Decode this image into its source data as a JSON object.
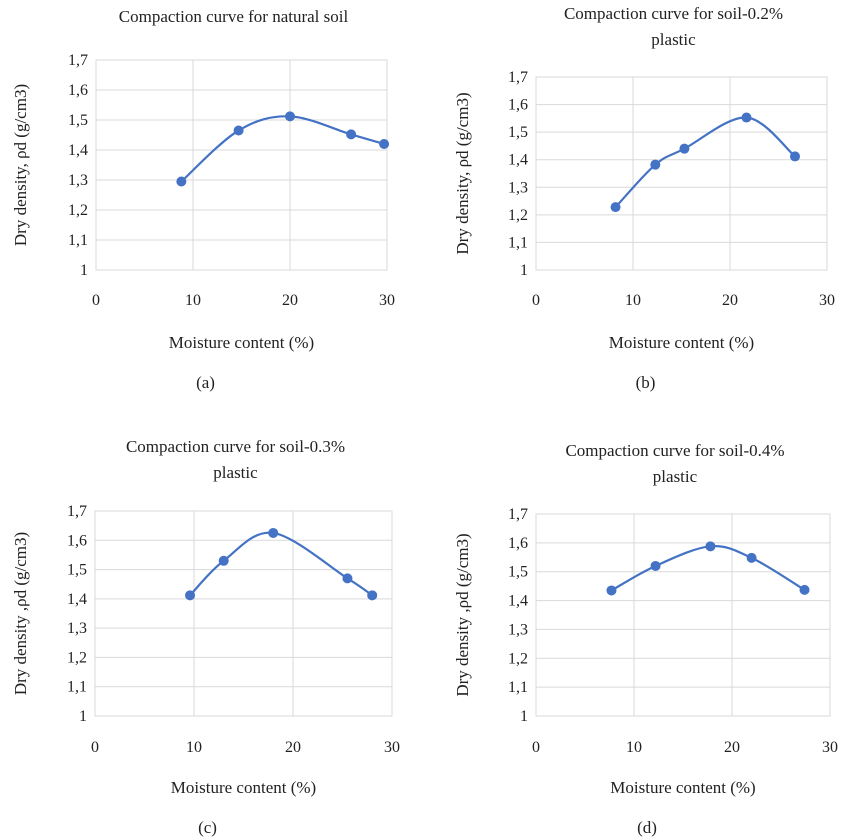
{
  "colors": {
    "series": "#4472C4"
  },
  "chart_data": [
    {
      "type": "line",
      "smooth": true,
      "title_lines": [
        "Compaction curve for natural soil"
      ],
      "xlabel": "Moisture content (%)",
      "ylabel": "Dry density, ρd (g/cm3)",
      "caption": "(a)",
      "xlim": [
        0,
        30
      ],
      "ylim": [
        1,
        1.7
      ],
      "xticks": [
        "0",
        "10",
        "20",
        "30"
      ],
      "yticks": [
        "1",
        "1,1",
        "1,2",
        "1,3",
        "1,4",
        "1,5",
        "1,6",
        "1,7"
      ],
      "grid": true,
      "x": [
        8.8,
        14.7,
        20.0,
        26.3,
        29.7
      ],
      "y": [
        1.295,
        1.465,
        1.512,
        1.452,
        1.42
      ]
    },
    {
      "type": "line",
      "smooth": true,
      "title_lines": [
        "Compaction curve for soil-0.2%",
        "plastic"
      ],
      "xlabel": "Moisture content (%)",
      "ylabel": "Dry density, ρd (g/cm3)",
      "caption": "(b)",
      "xlim": [
        0,
        30
      ],
      "ylim": [
        1,
        1.7
      ],
      "xticks": [
        "0",
        "10",
        "20",
        "30"
      ],
      "yticks": [
        "1",
        "1,1",
        "1,2",
        "1,3",
        "1,4",
        "1,5",
        "1,6",
        "1,7"
      ],
      "grid": true,
      "x": [
        8.2,
        12.3,
        15.3,
        21.7,
        26.7
      ],
      "y": [
        1.228,
        1.382,
        1.44,
        1.553,
        1.412
      ]
    },
    {
      "type": "line",
      "smooth": true,
      "title_lines": [
        "Compaction curve for soil-0.3%",
        "plastic"
      ],
      "xlabel": "Moisture content (%)",
      "ylabel": "Dry density ,ρd (g/cm3)",
      "caption": "(c)",
      "xlim": [
        0,
        30
      ],
      "ylim": [
        1,
        1.7
      ],
      "xticks": [
        "0",
        "10",
        "20",
        "30"
      ],
      "yticks": [
        "1",
        "1,1",
        "1,2",
        "1,3",
        "1,4",
        "1,5",
        "1,6",
        "1,7"
      ],
      "grid": true,
      "x": [
        9.6,
        13.0,
        18.0,
        25.5,
        28.0
      ],
      "y": [
        1.412,
        1.53,
        1.625,
        1.47,
        1.412
      ]
    },
    {
      "type": "line",
      "smooth": true,
      "title_lines": [
        "Compaction curve for soil-0.4%",
        "plastic"
      ],
      "xlabel": "Moisture content (%)",
      "ylabel": "Dry density ,ρd (g/cm3)",
      "caption": "(d)",
      "xlim": [
        0,
        30
      ],
      "ylim": [
        1,
        1.7
      ],
      "xticks": [
        "0",
        "10",
        "20",
        "30"
      ],
      "yticks": [
        "1",
        "1,1",
        "1,2",
        "1,3",
        "1,4",
        "1,5",
        "1,6",
        "1,7"
      ],
      "grid": true,
      "x": [
        7.7,
        12.2,
        17.8,
        22.0,
        27.4
      ],
      "y": [
        1.435,
        1.52,
        1.588,
        1.548,
        1.437
      ]
    }
  ]
}
